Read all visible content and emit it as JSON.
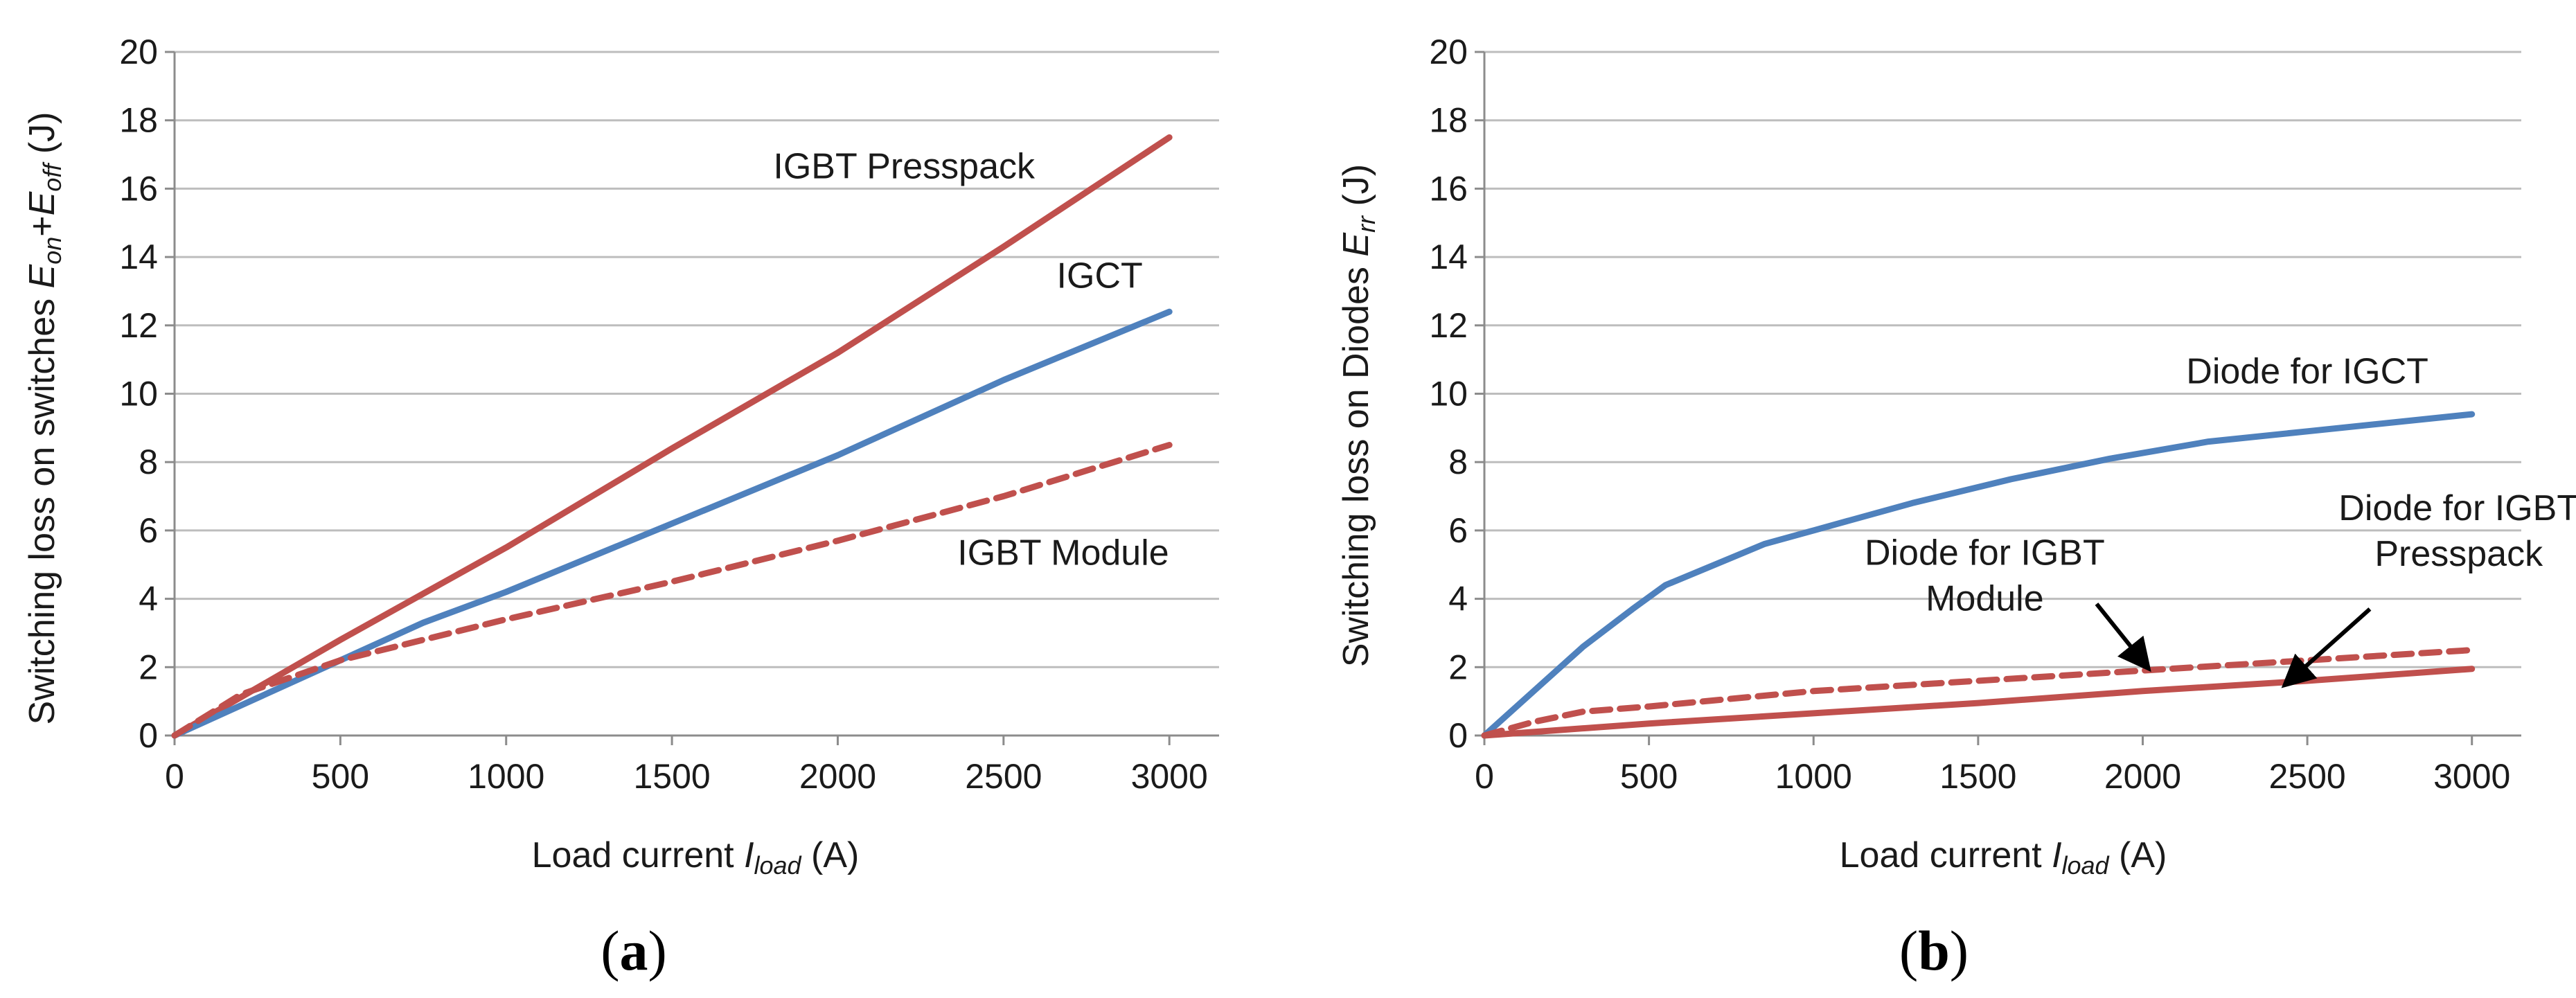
{
  "colors": {
    "red": "#c0504d",
    "blue": "#4f81bd",
    "grid": "#bdbdbd",
    "axis": "#8c8c8c",
    "text": "#1a1a1a"
  },
  "chart_data": [
    {
      "type": "line",
      "caption": {
        "open": "(",
        "letter": "a",
        "close": ")"
      },
      "ylabel": {
        "pre": "Switching loss on switches ",
        "e1": "E",
        "s1": "on",
        "plus": "+",
        "e2": "E",
        "s2": "off",
        "post": " (J)"
      },
      "xlabel": {
        "pre": "Load current ",
        "i": "I",
        "sub": "load",
        "post": " (A)"
      },
      "xlim": [
        0,
        3150
      ],
      "ylim": [
        0,
        20
      ],
      "xticks": [
        0,
        500,
        1000,
        1500,
        2000,
        2500,
        3000
      ],
      "yticks": [
        0,
        2,
        4,
        6,
        8,
        10,
        12,
        14,
        16,
        18,
        20
      ],
      "series": [
        {
          "name": "IGBT Presspack",
          "color": "#c0504d",
          "dash": "solid",
          "x": [
            0,
            500,
            1000,
            1500,
            2000,
            2500,
            3000
          ],
          "y": [
            0,
            2.8,
            5.5,
            8.4,
            11.2,
            14.3,
            17.5
          ]
        },
        {
          "name": "IGCT",
          "color": "#4f81bd",
          "dash": "solid",
          "x": [
            0,
            500,
            750,
            1000,
            1500,
            2000,
            2500,
            3000
          ],
          "y": [
            0,
            2.2,
            3.3,
            4.2,
            6.2,
            8.2,
            10.4,
            12.4
          ]
        },
        {
          "name": "IGBT Module",
          "color": "#c0504d",
          "dash": "dashed",
          "x": [
            0,
            200,
            500,
            1000,
            1500,
            2000,
            2500,
            3000
          ],
          "y": [
            0,
            1.2,
            2.2,
            3.4,
            4.5,
            5.7,
            7.0,
            8.5
          ]
        }
      ],
      "annotations": [
        {
          "lines": [
            "IGBT Presspack"
          ],
          "x": 2200,
          "y": 16.3,
          "anchor": "middle"
        },
        {
          "lines": [
            "IGCT"
          ],
          "x": 2790,
          "y": 13.1,
          "anchor": "middle"
        },
        {
          "lines": [
            "IGBT Module"
          ],
          "x": 2680,
          "y": 5.0,
          "anchor": "middle"
        }
      ]
    },
    {
      "type": "line",
      "caption": {
        "open": "(",
        "letter": "b",
        "close": ")"
      },
      "ylabel": {
        "pre": "Switching loss on Diodes ",
        "e1": "E",
        "s1": "rr",
        "post": " (J)"
      },
      "xlabel": {
        "pre": "Load current ",
        "i": "I",
        "sub": "load",
        "post": " (A)"
      },
      "xlim": [
        0,
        3150
      ],
      "ylim": [
        0,
        20
      ],
      "xticks": [
        0,
        500,
        1000,
        1500,
        2000,
        2500,
        3000
      ],
      "yticks": [
        0,
        2,
        4,
        6,
        8,
        10,
        12,
        14,
        16,
        18,
        20
      ],
      "series": [
        {
          "name": "Diode for IGCT",
          "color": "#4f81bd",
          "dash": "solid",
          "x": [
            0,
            150,
            300,
            450,
            550,
            700,
            850,
            1000,
            1300,
            1600,
            1900,
            2200,
            2500,
            3000
          ],
          "y": [
            0,
            1.3,
            2.6,
            3.7,
            4.4,
            5.0,
            5.6,
            6.0,
            6.8,
            7.5,
            8.1,
            8.6,
            8.9,
            9.4
          ]
        },
        {
          "name": "Diode for IGBT Module",
          "color": "#c0504d",
          "dash": "dashed",
          "x": [
            0,
            150,
            300,
            500,
            1000,
            1500,
            2000,
            2500,
            3000
          ],
          "y": [
            0,
            0.4,
            0.7,
            0.85,
            1.3,
            1.6,
            1.9,
            2.2,
            2.5
          ]
        },
        {
          "name": "Diode for IGBT Presspack",
          "color": "#c0504d",
          "dash": "solid",
          "x": [
            0,
            500,
            1000,
            1500,
            2000,
            2500,
            3000
          ],
          "y": [
            0,
            0.35,
            0.65,
            0.95,
            1.3,
            1.6,
            1.95
          ]
        }
      ],
      "annotations": [
        {
          "lines": [
            "Diode for IGCT"
          ],
          "x": 2500,
          "y": 10.3,
          "anchor": "middle"
        },
        {
          "lines": [
            "Diode for IGBT",
            "Module"
          ],
          "x": 1520,
          "y": 5.0,
          "anchor": "middle"
        },
        {
          "lines": [
            "Diode for IGBT",
            "Presspack"
          ],
          "x": 2960,
          "y": 6.3,
          "anchor": "middle"
        }
      ],
      "arrows": [
        {
          "from": [
            1860,
            3.85
          ],
          "to": [
            2010,
            2.05
          ]
        },
        {
          "from": [
            2690,
            3.7
          ],
          "to": [
            2440,
            1.55
          ]
        }
      ]
    }
  ]
}
